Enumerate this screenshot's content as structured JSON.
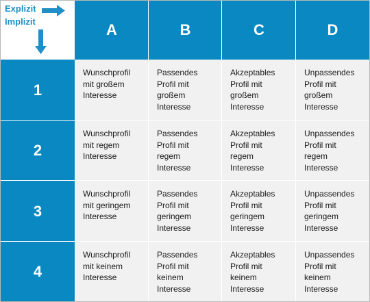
{
  "corner": {
    "explicit_label": "Explizit",
    "implicit_label": "Implizit",
    "accent": "#1f8fc7"
  },
  "columns": [
    "A",
    "B",
    "C",
    "D"
  ],
  "rows": [
    "1",
    "2",
    "3",
    "4"
  ],
  "cells": [
    [
      "Wunschprofil\nmit großem\nInteresse",
      "Passendes\nProfil mit\ngroßem\nInteresse",
      "Akzeptables\nProfil mit\ngroßem\nInteresse",
      "Unpassendes\nProfil mit\ngroßem\nInteresse"
    ],
    [
      "Wunschprofil\nmit regem\nInteresse",
      "Passendes\nProfil mit\nregem\nInteresse",
      "Akzeptables\nProfil mit\nregem\nInteresse",
      "Unpassendes\nProfil mit\nregem\nInteresse"
    ],
    [
      "Wunschprofil\nmit geringem\nInteresse",
      "Passendes\nProfil mit\ngeringem\nInteresse",
      "Akzeptables\nProfil mit\ngeringem\nInteresse",
      "Unpassendes\nProfil mit\ngeringem\nInteresse"
    ],
    [
      "Wunschprofil\nmit keinem\nInteresse",
      "Passendes\nProfil mit\nkeinem\nInteresse",
      "Akzeptables\nProfil mit\nkeinem\nInteresse",
      "Unpassendes\nProfil mit\nkeinem\nInteresse"
    ]
  ],
  "colors": {
    "header_blue": "#0a88c2",
    "cell_gray": "#f1f1f1"
  }
}
